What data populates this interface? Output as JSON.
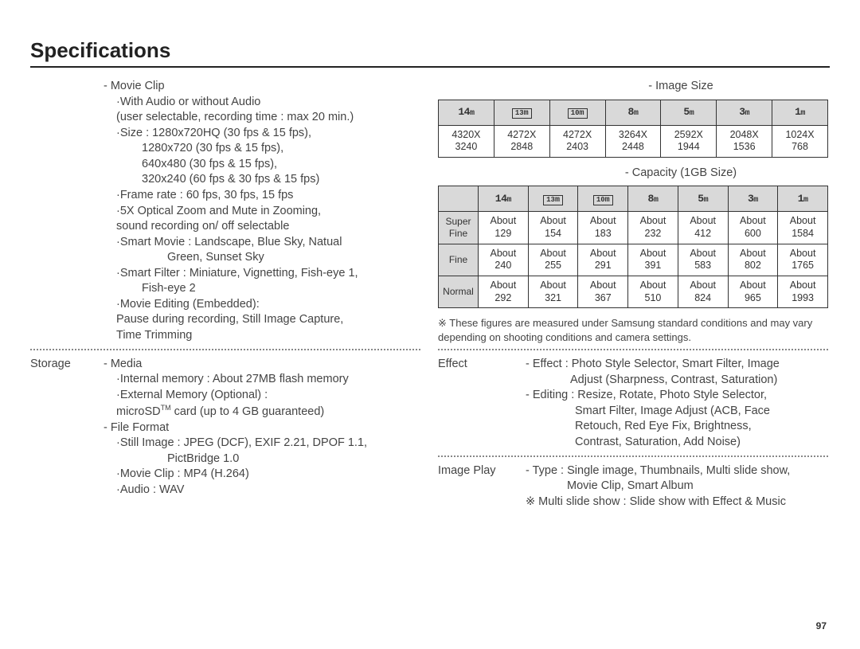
{
  "page": {
    "title": "Specifications",
    "number": "97"
  },
  "left": {
    "movieClip": {
      "header": "- Movie Clip",
      "audio": "·With Audio or without Audio",
      "audioNote": "(user selectable, recording time : max 20 min.)",
      "sizeLabel": "·Size : 1280x720HQ (30 fps & 15 fps),",
      "size2": "1280x720 (30 fps & 15 fps),",
      "size3": "640x480 (30 fps & 15 fps),",
      "size4": "320x240 (60 fps & 30 fps & 15 fps)",
      "frame": "·Frame rate : 60 fps, 30 fps, 15 fps",
      "zoom1": "·5X Optical Zoom and Mute in Zooming,",
      "zoom2": "sound recording on/ off selectable",
      "smartMovie1": "·Smart Movie : Landscape, Blue Sky, Natual",
      "smartMovie2": "Green, Sunset Sky",
      "smartFilter1": "·Smart Filter : Miniature, Vignetting, Fish-eye 1,",
      "smartFilter2": "Fish-eye 2",
      "edit1": "·Movie Editing (Embedded):",
      "edit2": "Pause during recording, Still Image Capture,",
      "edit3": "Time Trimming"
    },
    "storage": {
      "label": "Storage",
      "media": "- Media",
      "internal": "·Internal memory : About 27MB flash memory",
      "external": "·External Memory (Optional) :",
      "microsd1": "microSD",
      "microsd_tm": "TM",
      "microsd2": " card (up to 4 GB guaranteed)",
      "fileFormat": "- File Format",
      "still1": "·Still Image : JPEG (DCF), EXIF 2.21, DPOF 1.1,",
      "still2": "PictBridge 1.0",
      "movie": "·Movie Clip : MP4 (H.264)",
      "audio": "·Audio : WAV"
    }
  },
  "right": {
    "imageSize": {
      "header": "- Image Size",
      "sizes": [
        "14",
        "13",
        "10",
        "8",
        "5",
        "3",
        "1"
      ],
      "res": [
        [
          "4320X",
          "3240"
        ],
        [
          "4272X",
          "2848"
        ],
        [
          "4272X",
          "2403"
        ],
        [
          "3264X",
          "2448"
        ],
        [
          "2592X",
          "1944"
        ],
        [
          "2048X",
          "1536"
        ],
        [
          "1024X",
          "768"
        ]
      ]
    },
    "capacity": {
      "header": "- Capacity (1GB Size)",
      "rowLabels": [
        "Super Fine",
        "Fine",
        "Normal"
      ],
      "data": [
        [
          "129",
          "154",
          "183",
          "232",
          "412",
          "600",
          "1584"
        ],
        [
          "240",
          "255",
          "291",
          "391",
          "583",
          "802",
          "1765"
        ],
        [
          "292",
          "321",
          "367",
          "510",
          "824",
          "965",
          "1993"
        ]
      ],
      "note": "※ These figures are measured under Samsung standard conditions and may vary depending on shooting conditions and camera settings."
    },
    "effect": {
      "label": "Effect",
      "l1": "- Effect : Photo Style Selector, Smart Filter, Image",
      "l2": "Adjust (Sharpness, Contrast, Saturation)",
      "l3": "- Editing : Resize, Rotate, Photo Style Selector,",
      "l4": "Smart Filter, Image Adjust (ACB, Face",
      "l5": "Retouch, Red Eye Fix, Brightness,",
      "l6": "Contrast, Saturation, Add Noise)"
    },
    "imagePlay": {
      "label": "Image Play",
      "l1": "- Type : Single image, Thumbnails, Multi slide show,",
      "l2": "Movie Clip, Smart Album",
      "l3": "※ Multi slide show : Slide show with Effect & Music"
    }
  },
  "colors": {
    "text": "#3a3a3a",
    "border": "#333333",
    "headerBg": "#d9d9d9",
    "dotted": "#888888"
  }
}
